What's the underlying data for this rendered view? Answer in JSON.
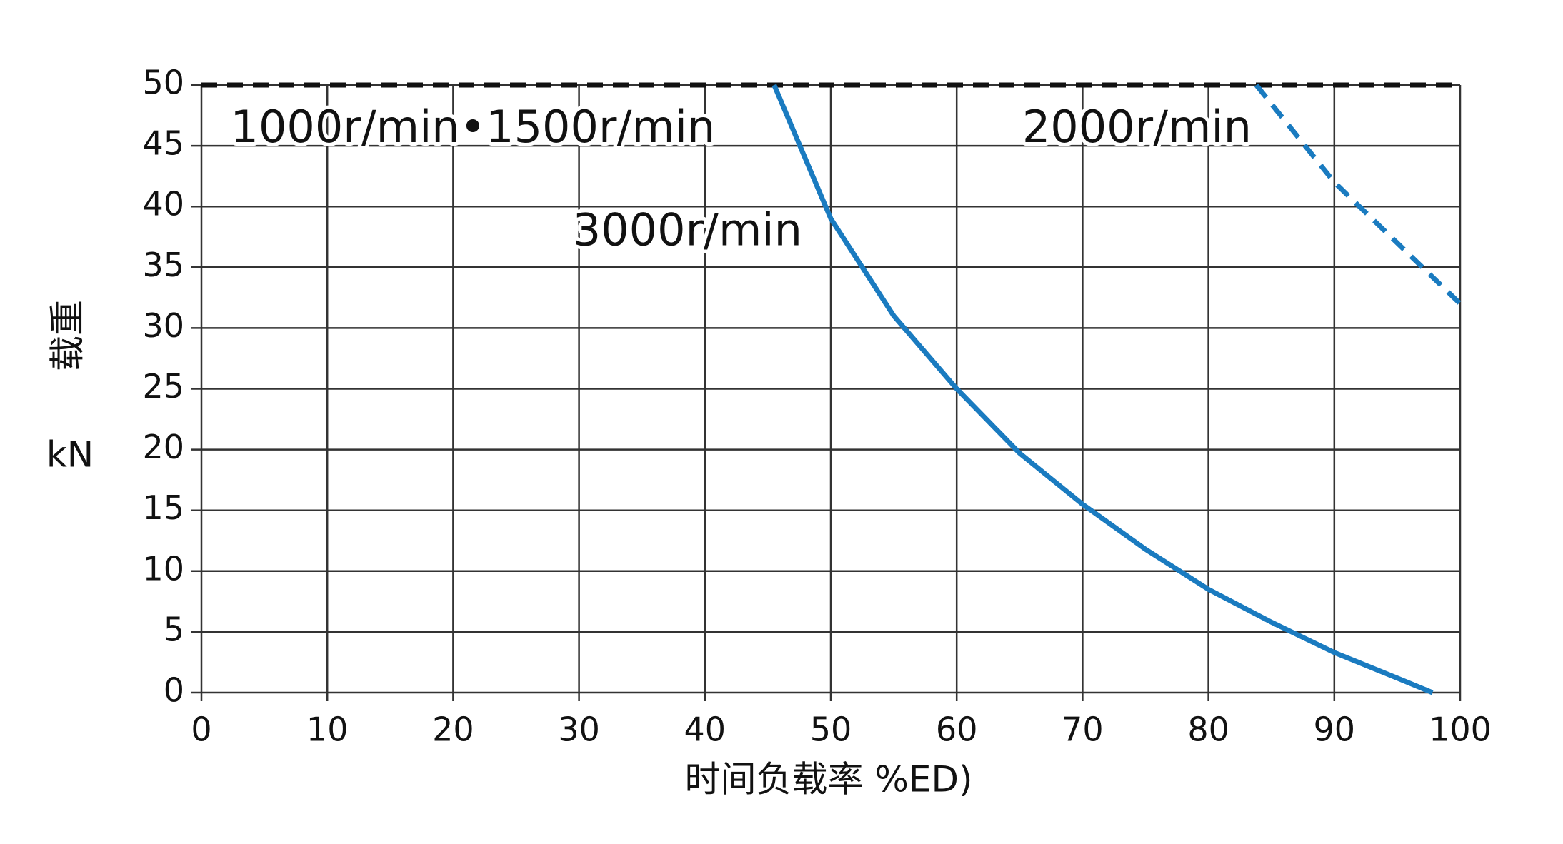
{
  "chart_data": {
    "type": "line",
    "x_label": "时间负载率  %ED)",
    "y_label": "载重",
    "y_unit": "kN",
    "xlim": [
      0,
      100
    ],
    "ylim": [
      0,
      50
    ],
    "xticks": [
      0,
      10,
      20,
      30,
      40,
      50,
      60,
      70,
      80,
      90,
      100
    ],
    "yticks": [
      0,
      5,
      10,
      15,
      20,
      25,
      30,
      35,
      40,
      45,
      50
    ],
    "grid": true,
    "series": [
      {
        "name": "1000r/min•1500r/min",
        "color": "#111111",
        "dashed": true,
        "x": [
          0,
          100
        ],
        "values": [
          50,
          50
        ]
      },
      {
        "name": "3000r/min",
        "color": "#1a7bc0",
        "dashed": false,
        "x": [
          45.5,
          50,
          55,
          60,
          65,
          70,
          75,
          80,
          85,
          90,
          95,
          97.8
        ],
        "values": [
          50,
          39,
          31,
          25,
          19.7,
          15.5,
          11.8,
          8.5,
          5.8,
          3.3,
          1.2,
          0
        ]
      },
      {
        "name": "2000r/min",
        "color": "#1a7bc0",
        "dashed": true,
        "x": [
          83.8,
          90,
          95,
          100
        ],
        "values": [
          50,
          42,
          37,
          32
        ]
      }
    ]
  }
}
